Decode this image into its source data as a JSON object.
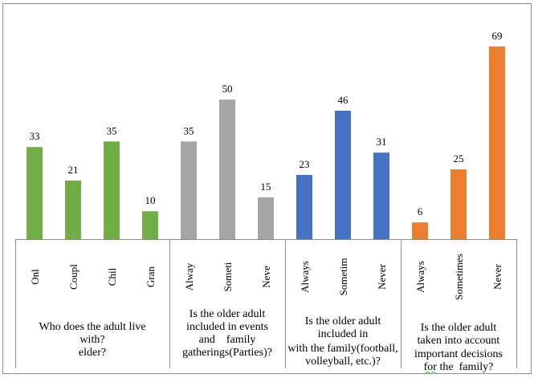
{
  "chart_data": {
    "type": "bar",
    "title": "",
    "xlabel": "",
    "ylabel": "",
    "ylim": [
      0,
      75
    ],
    "grid": false,
    "legend": "none",
    "groups": [
      {
        "label_lines": [
          "Who does the adult live",
          "with?",
          "elder?"
        ],
        "color": "#70ad47",
        "categories": [
          "Onl",
          "Coupl",
          "Chil",
          "Gran"
        ],
        "values": [
          33,
          21,
          35,
          10
        ]
      },
      {
        "label_lines": [
          "Is the older adult",
          "included in events",
          "and    family",
          "gatherings(Parties)?"
        ],
        "color": "#a5a5a5",
        "categories": [
          "Alway",
          "Someti",
          "Neve"
        ],
        "values": [
          35,
          50,
          15
        ]
      },
      {
        "label_lines": [
          "Is the older adult",
          "included in",
          "with the family(football,",
          "volleyball, etc.)?"
        ],
        "color": "#4472c4",
        "categories": [
          "Always",
          "Sometim",
          "Never"
        ],
        "values": [
          23,
          46,
          31
        ]
      },
      {
        "label_lines": [
          "Is the older adult",
          "taken into account",
          "important decisions",
          "for the  family?"
        ],
        "color": "#ed7d31",
        "categories": [
          "Always",
          "Sometimes",
          "Never"
        ],
        "values": [
          6,
          25,
          69
        ]
      }
    ]
  }
}
